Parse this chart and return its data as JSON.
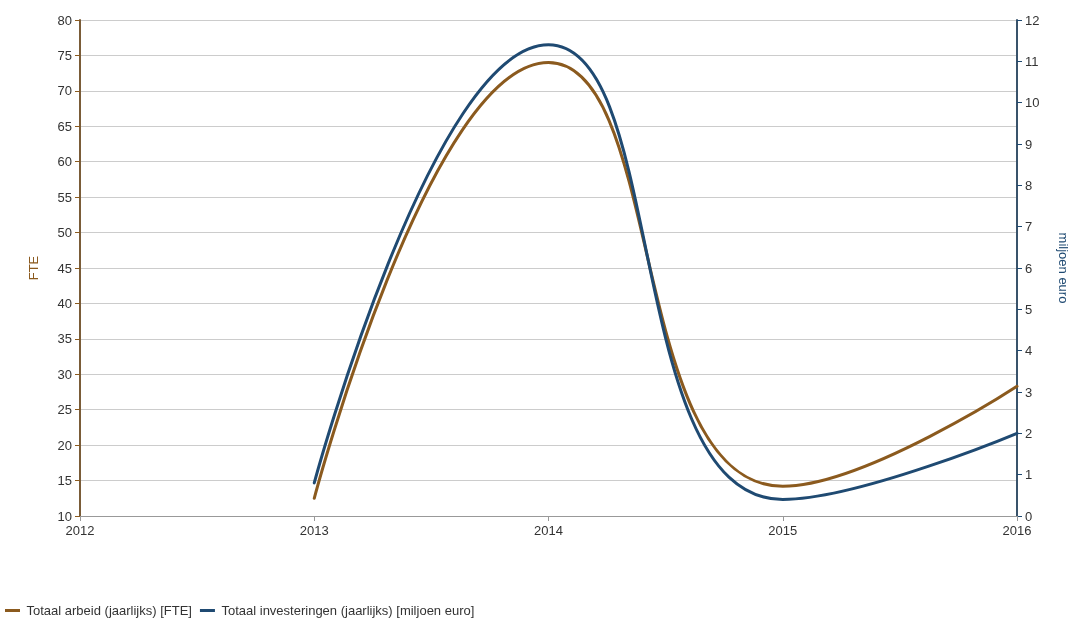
{
  "chart_data": {
    "type": "line",
    "ylabel": "FTE",
    "y2label": "miljoen euro",
    "x": [
      2013,
      2014,
      2015,
      2016
    ],
    "xlim": [
      2012,
      2016
    ],
    "xticks": [
      2012,
      2013,
      2014,
      2015,
      2016
    ],
    "ylim": [
      10,
      80
    ],
    "yticks": [
      10,
      15,
      20,
      25,
      30,
      35,
      40,
      45,
      50,
      55,
      60,
      65,
      70,
      75,
      80
    ],
    "y2lim": [
      0,
      12
    ],
    "y2ticks": [
      0,
      1,
      2,
      3,
      4,
      5,
      6,
      7,
      8,
      9,
      10,
      11,
      12
    ],
    "series": [
      {
        "name": "Totaal arbeid (jaarlijks) [FTE]",
        "color": "#8b5a1e",
        "values": [
          12.5,
          74,
          14.2,
          28.3
        ]
      },
      {
        "name": "Totaal investeringen (jaarlijks) [miljoen euro]",
        "color": "#1f4a72",
        "axis": "y2",
        "values": [
          0.8,
          11.4,
          0.4,
          2.0
        ]
      }
    ],
    "grid": "y",
    "legend": "bottom",
    "marker": "none",
    "line_style": "solid"
  }
}
